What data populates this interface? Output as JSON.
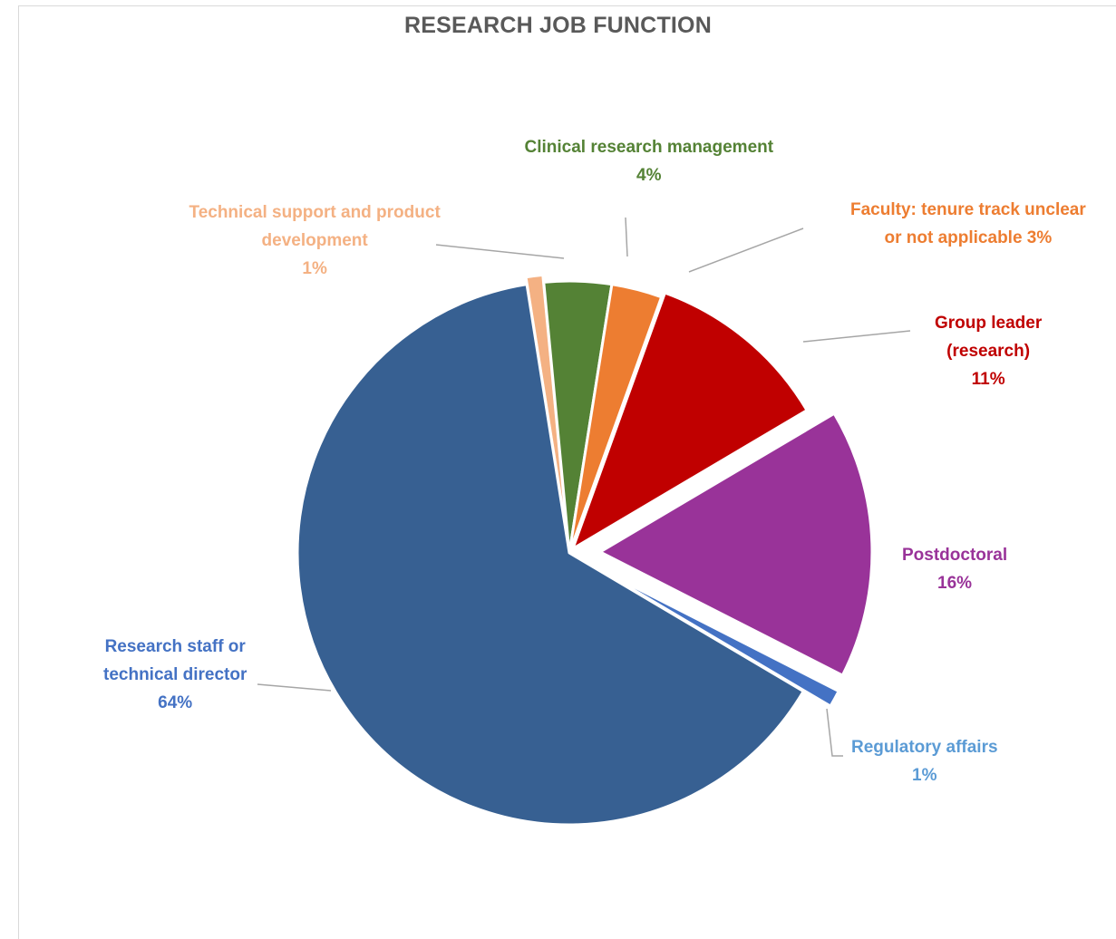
{
  "chart_data": {
    "type": "pie",
    "title": "RESEARCH JOB FUNCTION",
    "slices": [
      {
        "name": "Technical support and product development",
        "value": 1,
        "label_lines": [
          "Technical support and product",
          "development",
          "1%"
        ],
        "color": "#f4b183",
        "label_color": "#f4b183"
      },
      {
        "name": "Clinical research management",
        "value": 4,
        "label_lines": [
          "Clinical research management",
          "4%"
        ],
        "color": "#548235",
        "label_color": "#548235"
      },
      {
        "name": "Faculty: tenure track unclear or not applicable",
        "value": 3,
        "label_lines": [
          "Faculty: tenure track unclear",
          "or not applicable 3%"
        ],
        "color": "#ed7d31",
        "label_color": "#ed7d31"
      },
      {
        "name": "Group leader (research)",
        "value": 11,
        "label_lines": [
          "Group leader",
          "(research)",
          "11%"
        ],
        "color": "#c00000",
        "label_color": "#c00000"
      },
      {
        "name": "Postdoctoral",
        "value": 16,
        "label_lines": [
          "Postdoctoral",
          "16%"
        ],
        "color": "#993399",
        "label_color": "#993399"
      },
      {
        "name": "Regulatory affairs",
        "value": 1,
        "label_lines": [
          "Regulatory affairs",
          "1%"
        ],
        "color": "#4472c4",
        "label_color": "#5b9bd5"
      },
      {
        "name": "Research staff or technical director",
        "value": 64,
        "label_lines": [
          "Research staff or",
          "technical director",
          "64%"
        ],
        "color": "#376092",
        "label_color": "#4472c4"
      }
    ],
    "legend": "none"
  },
  "colors": {
    "title": "#595959",
    "leader_line": "#a6a6a6",
    "separator": "#ffffff"
  }
}
